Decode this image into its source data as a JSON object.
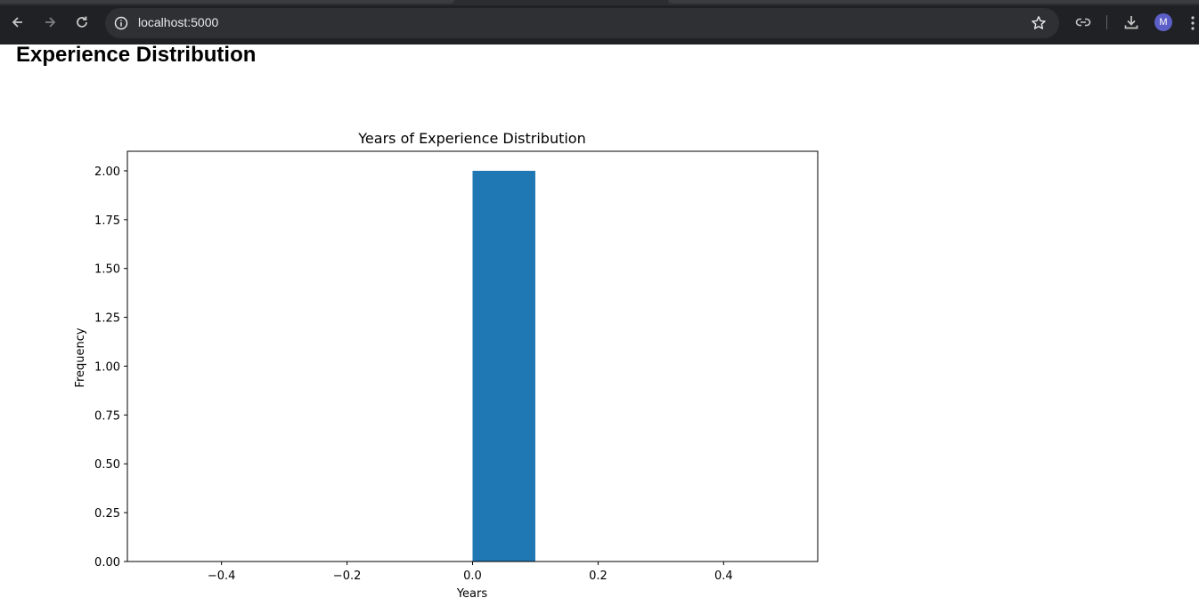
{
  "browser": {
    "url": "localhost:5000",
    "profile_initial": "M",
    "icons": [
      "back-arrow-icon",
      "forward-arrow-icon",
      "reload-icon",
      "info-icon",
      "star-icon",
      "link-icon",
      "download-icon",
      "more-vert-icon"
    ]
  },
  "page": {
    "title": "Experience Distribution"
  },
  "chart_data": {
    "type": "bar",
    "title": "Years of Experience Distribution",
    "xlabel": "Years",
    "ylabel": "Frequency",
    "xlim": [
      -0.55,
      0.55
    ],
    "ylim": [
      0,
      2.1
    ],
    "xticks": [
      -0.4,
      -0.2,
      0.0,
      0.2,
      0.4
    ],
    "xtick_labels": [
      "−0.4",
      "−0.2",
      "0.0",
      "0.2",
      "0.4"
    ],
    "yticks": [
      0.0,
      0.25,
      0.5,
      0.75,
      1.0,
      1.25,
      1.5,
      1.75,
      2.0
    ],
    "ytick_labels": [
      "0.00",
      "0.25",
      "0.50",
      "0.75",
      "1.00",
      "1.25",
      "1.50",
      "1.75",
      "2.00"
    ],
    "bars": [
      {
        "x0": 0.0,
        "x1": 0.1,
        "value": 2
      }
    ],
    "bar_color": "#1f77b4",
    "grid": false,
    "legend": "none"
  }
}
